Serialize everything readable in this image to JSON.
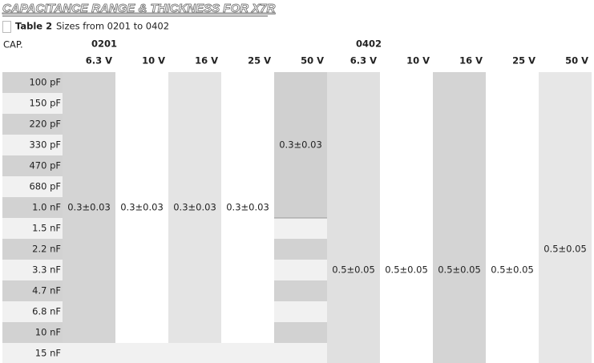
{
  "title": "CAPACITANCE RANGE & THICKNESS FOR X7R",
  "caption": {
    "label": "Table 2",
    "text": "Sizes from 0201 to 0402"
  },
  "header": {
    "cap": "CAP."
  },
  "rows": [
    "100 pF",
    "150 pF",
    "220 pF",
    "330 pF",
    "470 pF",
    "680 pF",
    "1.0 nF",
    "1.5 nF",
    "2.2 nF",
    "3.3 nF",
    "4.7 nF",
    "6.8 nF",
    "10 nF",
    "15 nF"
  ],
  "groups": [
    {
      "size": "0201",
      "columns": [
        {
          "voltage": "6.3 V",
          "value": "0.3±0.03"
        },
        {
          "voltage": "10 V",
          "value": "0.3±0.03"
        },
        {
          "voltage": "16 V",
          "value": "0.3±0.03"
        },
        {
          "voltage": "25 V",
          "value": "0.3±0.03"
        },
        {
          "voltage": "50 V",
          "value": "0.3±0.03"
        }
      ]
    },
    {
      "size": "0402",
      "columns": [
        {
          "voltage": "6.3 V",
          "value": "0.5±0.05"
        },
        {
          "voltage": "10 V",
          "value": "0.5±0.05"
        },
        {
          "voltage": "16 V",
          "value": "0.5±0.05"
        },
        {
          "voltage": "25 V",
          "value": "0.5±0.05"
        },
        {
          "voltage": "50 V",
          "value": "0.5±0.05"
        }
      ]
    }
  ]
}
